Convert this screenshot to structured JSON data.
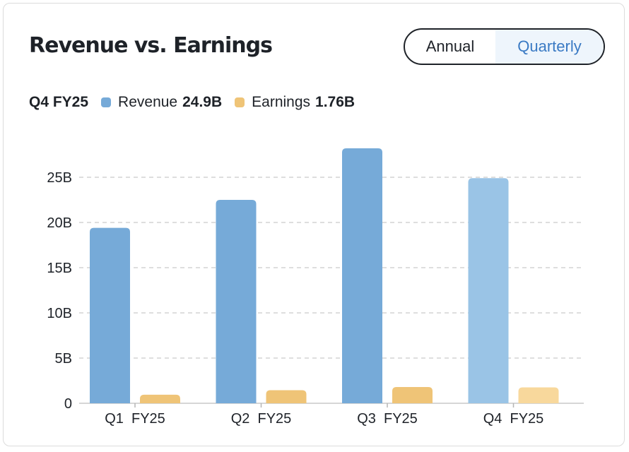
{
  "title": "Revenue vs. Earnings",
  "toggle": {
    "options": [
      "Annual",
      "Quarterly"
    ],
    "selected": "Quarterly"
  },
  "legend": {
    "period": "Q4 FY25",
    "revenue_label": "Revenue",
    "revenue_value": "24.9B",
    "earnings_label": "Earnings",
    "earnings_value": "1.76B"
  },
  "colors": {
    "revenue": "#76aad8",
    "revenue_highlight": "#9ac4e6",
    "earnings": "#efc477",
    "earnings_highlight": "#f8d89c",
    "grid": "#d4d4d4",
    "text": "#1e2228"
  },
  "chart_data": {
    "type": "bar",
    "categories": [
      "Q1  FY25",
      "Q2  FY25",
      "Q3  FY25",
      "Q4  FY25"
    ],
    "series": [
      {
        "name": "Revenue",
        "values": [
          19.4,
          22.5,
          28.2,
          24.9
        ]
      },
      {
        "name": "Earnings",
        "values": [
          0.95,
          1.45,
          1.8,
          1.76
        ]
      }
    ],
    "yticks": [
      "0",
      "5B",
      "10B",
      "15B",
      "20B",
      "25B"
    ],
    "ytick_values": [
      0,
      5,
      10,
      15,
      20,
      25
    ],
    "ylim": [
      0,
      28.2
    ],
    "highlighted_category": "Q4  FY25",
    "grid": true,
    "title": "",
    "xlabel": "",
    "ylabel": ""
  }
}
